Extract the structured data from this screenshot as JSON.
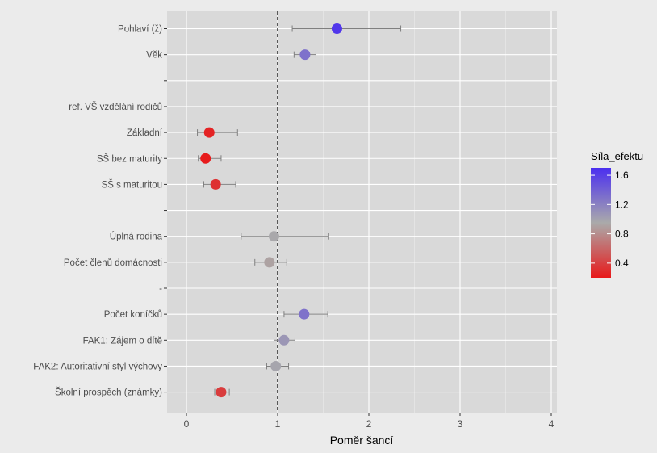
{
  "chart_data": {
    "type": "scatter",
    "subtype": "forest-plot",
    "xlabel": "Poměr šancí",
    "ylabel": "",
    "xlim": [
      -0.12,
      4.12
    ],
    "xticks": [
      0,
      1,
      2,
      3,
      4
    ],
    "xtick_labels": [
      "0",
      "1",
      "2",
      "3",
      "4"
    ],
    "reference_line": 1,
    "grid": true,
    "legend": {
      "title": "Síla_efektu",
      "placement": "right",
      "range": [
        0.2,
        1.7
      ],
      "ticks": [
        0.4,
        0.8,
        1.2,
        1.6
      ],
      "tick_labels": [
        "0.4",
        "0.8",
        "1.2",
        "1.6"
      ],
      "color_low": "#e8191a",
      "color_mid": "#aaaaaa",
      "color_high": "#4b2ff0"
    },
    "rows": [
      {
        "label": "Pohlaví (ž)",
        "estimate": 1.65,
        "lower": 1.16,
        "upper": 2.35
      },
      {
        "label": "Věk",
        "estimate": 1.3,
        "lower": 1.18,
        "upper": 1.42
      },
      {
        "label": "",
        "estimate": null,
        "lower": null,
        "upper": null
      },
      {
        "label": "ref. VŠ vzdělání rodičů",
        "estimate": null,
        "lower": null,
        "upper": null
      },
      {
        "label": "Základní",
        "estimate": 0.25,
        "lower": 0.12,
        "upper": 0.56
      },
      {
        "label": "SŠ bez maturity",
        "estimate": 0.21,
        "lower": 0.13,
        "upper": 0.38
      },
      {
        "label": "SŠ s maturitou",
        "estimate": 0.32,
        "lower": 0.19,
        "upper": 0.54
      },
      {
        "label": "",
        "estimate": null,
        "lower": null,
        "upper": null
      },
      {
        "label": "Úplná rodina",
        "estimate": 0.96,
        "lower": 0.6,
        "upper": 1.56
      },
      {
        "label": "Počet členů domácnosti",
        "estimate": 0.91,
        "lower": 0.75,
        "upper": 1.1
      },
      {
        "label": "-",
        "estimate": null,
        "lower": null,
        "upper": null
      },
      {
        "label": "Počet koníčků",
        "estimate": 1.29,
        "lower": 1.07,
        "upper": 1.55
      },
      {
        "label": "FAK1: Zájem o dítě",
        "estimate": 1.07,
        "lower": 0.96,
        "upper": 1.19
      },
      {
        "label": "FAK2: Autoritativní styl výchovy",
        "estimate": 0.98,
        "lower": 0.88,
        "upper": 1.12
      },
      {
        "label": "Školní prospěch (známky)",
        "estimate": 0.38,
        "lower": 0.31,
        "upper": 0.47
      }
    ]
  }
}
